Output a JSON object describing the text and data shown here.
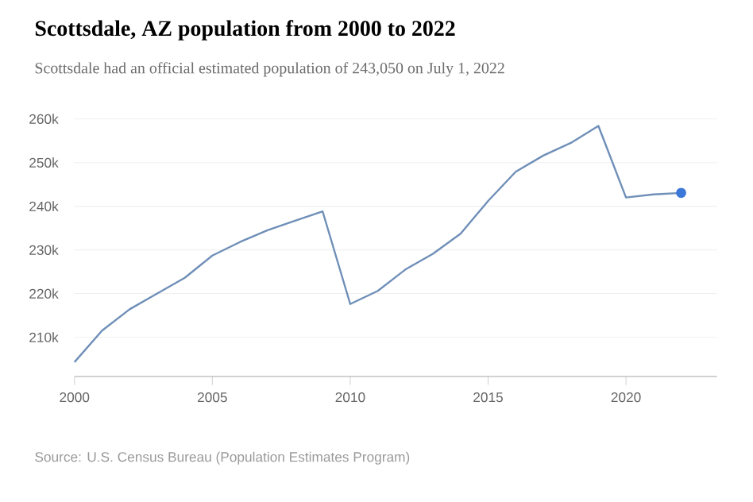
{
  "chart_data": {
    "type": "line",
    "title": "Scottsdale, AZ population from 2000 to 2022",
    "subtitle": "Scottsdale had an official estimated population of 243,050 on July 1, 2022",
    "annotations": [
      "Source: U.S. Census Bureau (Population Estimates Program)"
    ],
    "series": [
      {
        "color": "#6f8fb8",
        "x": [
          2000,
          2001,
          2002,
          2003,
          2004,
          2005,
          2006,
          2007,
          2008,
          2009,
          2010,
          2011,
          2012,
          2013,
          2014,
          2015,
          2016,
          2017,
          2018,
          2019,
          2020,
          2021,
          2022
        ],
        "values": [
          204300,
          211500,
          216400,
          220000,
          223600,
          228700,
          231800,
          234500,
          236700,
          238800,
          217600,
          220600,
          225500,
          229100,
          233700,
          241200,
          247900,
          251600,
          254500,
          258400,
          242000,
          242700,
          243050
        ]
      },
      {
        "type": "scatter",
        "color": "#3b78d8",
        "x": [
          2022
        ],
        "values": [
          243050
        ]
      }
    ],
    "xlim": [
      2000,
      2023.3
    ],
    "ylim": [
      201000,
      260000
    ],
    "xticks": [
      2000,
      2005,
      2010,
      2015,
      2020
    ],
    "yticks": [
      {
        "value": 210000,
        "label": "210k"
      },
      {
        "value": 220000,
        "label": "220k"
      },
      {
        "value": 230000,
        "label": "230k"
      },
      {
        "value": 240000,
        "label": "240k"
      },
      {
        "value": 250000,
        "label": "250k"
      },
      {
        "value": 260000,
        "label": "260k"
      }
    ],
    "grid": "y"
  }
}
